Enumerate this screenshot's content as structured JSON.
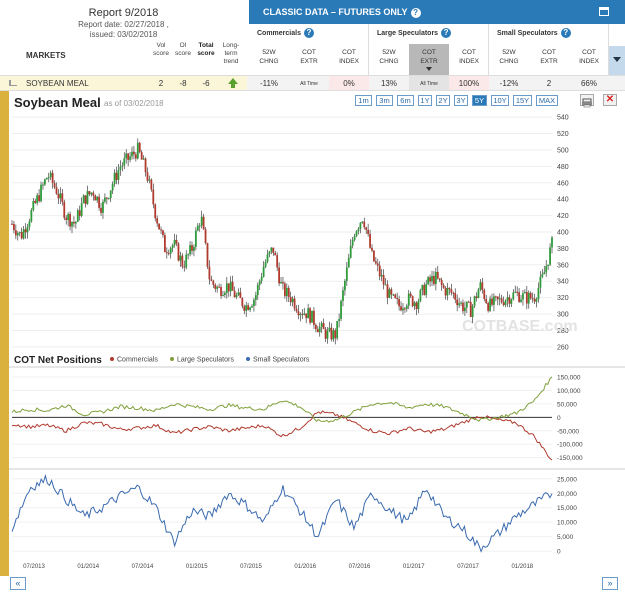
{
  "report": {
    "title": "Report 9/2018",
    "date_line": "Report date: 02/27/2018 ,",
    "issued_line": "issued: 03/02/2018"
  },
  "table": {
    "markets_label": "MARKETS",
    "col_vol": [
      "Vol",
      "score"
    ],
    "col_oi": [
      "OI",
      "score"
    ],
    "col_total": [
      "Total",
      "score"
    ],
    "col_long": [
      "Long-",
      "term",
      "trend"
    ],
    "classic_title": "CLASSIC DATA – FUTURES ONLY",
    "groups": [
      {
        "title": "Commercials",
        "cols": [
          [
            "52W",
            "CHNG"
          ],
          [
            "COT",
            "EXTR"
          ],
          [
            "COT",
            "INDEX"
          ]
        ]
      },
      {
        "title": "Large Speculators",
        "cols": [
          [
            "52W",
            "CHNG"
          ],
          [
            "COT",
            "EXTR"
          ],
          [
            "COT",
            "INDEX"
          ]
        ]
      },
      {
        "title": "Small Speculators",
        "cols": [
          [
            "52W",
            "CHNG"
          ],
          [
            "COT",
            "EXTR"
          ],
          [
            "COT",
            "INDEX"
          ]
        ]
      }
    ],
    "row": {
      "market": "SOYBEAN MEAL",
      "vol": "2",
      "oi": "-8",
      "total": "-6",
      "comm_chng": "-11%",
      "comm_extr": "All Time",
      "comm_index": "0%",
      "lspec_chng": "13%",
      "lspec_extr": "All Time",
      "lspec_index": "100%",
      "sspec_chng": "-12%",
      "sspec_extr": "2",
      "sspec_index": "66%"
    }
  },
  "chart_header": {
    "title": "Soybean Meal",
    "asof": "as of 03/02/2018",
    "ranges": [
      "1m",
      "3m",
      "6m",
      "1Y",
      "2Y",
      "3Y",
      "5Y",
      "10Y",
      "15Y",
      "MAX"
    ],
    "active_range": "5Y"
  },
  "nav": {
    "prev": "«",
    "next": "»"
  },
  "watermark": "COTBASE.com",
  "chart_data": [
    {
      "type": "candlestick",
      "title": "Soybean Meal",
      "ylim": [
        255,
        545
      ],
      "yticks": [
        260,
        280,
        300,
        320,
        340,
        360,
        380,
        400,
        420,
        440,
        460,
        480,
        500,
        520,
        540
      ],
      "x": [
        "2013-03",
        "2013-04",
        "2013-05",
        "2013-06",
        "2013-07",
        "2013-08",
        "2013-09",
        "2013-10",
        "2013-11",
        "2013-12",
        "2014-01",
        "2014-02",
        "2014-03",
        "2014-04",
        "2014-05",
        "2014-06",
        "2014-07",
        "2014-08",
        "2014-09",
        "2014-10",
        "2014-11",
        "2014-12",
        "2015-01",
        "2015-02",
        "2015-03",
        "2015-04",
        "2015-05",
        "2015-06",
        "2015-07",
        "2015-08",
        "2015-09",
        "2015-10",
        "2015-11",
        "2015-12",
        "2016-01",
        "2016-02",
        "2016-03",
        "2016-04",
        "2016-05",
        "2016-06",
        "2016-07",
        "2016-08",
        "2016-09",
        "2016-10",
        "2016-11",
        "2016-12",
        "2017-01",
        "2017-02",
        "2017-03",
        "2017-04",
        "2017-05",
        "2017-06",
        "2017-07",
        "2017-08",
        "2017-09",
        "2017-10",
        "2017-11",
        "2017-12",
        "2018-01",
        "2018-02",
        "2018-03"
      ],
      "close": [
        410,
        395,
        420,
        445,
        470,
        450,
        420,
        410,
        440,
        450,
        430,
        455,
        480,
        490,
        500,
        470,
        420,
        380,
        385,
        360,
        380,
        420,
        340,
        330,
        335,
        320,
        310,
        320,
        360,
        380,
        330,
        320,
        305,
        300,
        285,
        275,
        275,
        340,
        400,
        420,
        370,
        345,
        320,
        310,
        318,
        315,
        335,
        345,
        330,
        325,
        310,
        305,
        335,
        310,
        315,
        320,
        325,
        320,
        320,
        345,
        385
      ],
      "series_lines": "daily OHLC approximated as monthly closes"
    },
    {
      "type": "line",
      "title": "COT Net Positions",
      "legend": [
        "Commercials",
        "Large Speculators",
        "Small Speculators"
      ],
      "ylim": [
        -170000,
        165000
      ],
      "yticks": [
        -150000,
        -100000,
        -50000,
        0,
        50000,
        100000,
        150000
      ],
      "x": [
        "2013-03",
        "2013-05",
        "2013-07",
        "2013-09",
        "2013-11",
        "2014-01",
        "2014-03",
        "2014-05",
        "2014-07",
        "2014-09",
        "2014-11",
        "2015-01",
        "2015-03",
        "2015-05",
        "2015-07",
        "2015-09",
        "2015-11",
        "2016-01",
        "2016-03",
        "2016-05",
        "2016-07",
        "2016-09",
        "2016-11",
        "2017-01",
        "2017-03",
        "2017-05",
        "2017-07",
        "2017-09",
        "2017-11",
        "2018-01",
        "2018-03"
      ],
      "series": [
        {
          "name": "Commercials",
          "color": "#b03a2e",
          "values": [
            -25000,
            -35000,
            -30000,
            -50000,
            -20000,
            -25000,
            -45000,
            -40000,
            -30000,
            -60000,
            -45000,
            -35000,
            -50000,
            -40000,
            -30000,
            -70000,
            -40000,
            20000,
            10000,
            -20000,
            -50000,
            -60000,
            -40000,
            -55000,
            -45000,
            -20000,
            5000,
            -10000,
            -20000,
            -70000,
            -160000
          ]
        },
        {
          "name": "Large Speculators",
          "color": "#7fa03a",
          "values": [
            20000,
            30000,
            25000,
            45000,
            10000,
            20000,
            40000,
            35000,
            25000,
            50000,
            40000,
            30000,
            45000,
            35000,
            30000,
            65000,
            40000,
            -15000,
            -10000,
            20000,
            50000,
            55000,
            35000,
            50000,
            40000,
            15000,
            -10000,
            0,
            15000,
            60000,
            150000
          ]
        }
      ]
    },
    {
      "type": "line",
      "series_name": "Small Speculators",
      "color": "#3a6ab0",
      "ylim": [
        -1000,
        27000
      ],
      "yticks": [
        0,
        5000,
        10000,
        15000,
        20000,
        25000
      ],
      "x": [
        "2013-03",
        "2013-05",
        "2013-07",
        "2013-09",
        "2013-11",
        "2014-01",
        "2014-03",
        "2014-05",
        "2014-07",
        "2014-09",
        "2014-11",
        "2015-01",
        "2015-03",
        "2015-05",
        "2015-07",
        "2015-09",
        "2015-11",
        "2016-01",
        "2016-03",
        "2016-05",
        "2016-07",
        "2016-09",
        "2016-11",
        "2017-01",
        "2017-03",
        "2017-05",
        "2017-07",
        "2017-09",
        "2017-11",
        "2018-01",
        "2018-03"
      ],
      "values": [
        8000,
        22000,
        25000,
        18000,
        12000,
        15000,
        19000,
        22000,
        15000,
        3000,
        14000,
        12000,
        20000,
        16000,
        10000,
        22000,
        14000,
        5000,
        18000,
        8000,
        20000,
        14000,
        10000,
        22000,
        12000,
        8000,
        1000,
        6000,
        12000,
        16000,
        20000
      ]
    }
  ],
  "xaxis_labels": [
    "07/2013",
    "01/2014",
    "07/2014",
    "01/2015",
    "07/2015",
    "01/2016",
    "07/2016",
    "01/2017",
    "07/2017",
    "01/2018"
  ],
  "colors": {
    "accent": "#2a7ab8",
    "gold": "#d9b13c",
    "up": "#2e9a3a",
    "down": "#b03a2e"
  }
}
